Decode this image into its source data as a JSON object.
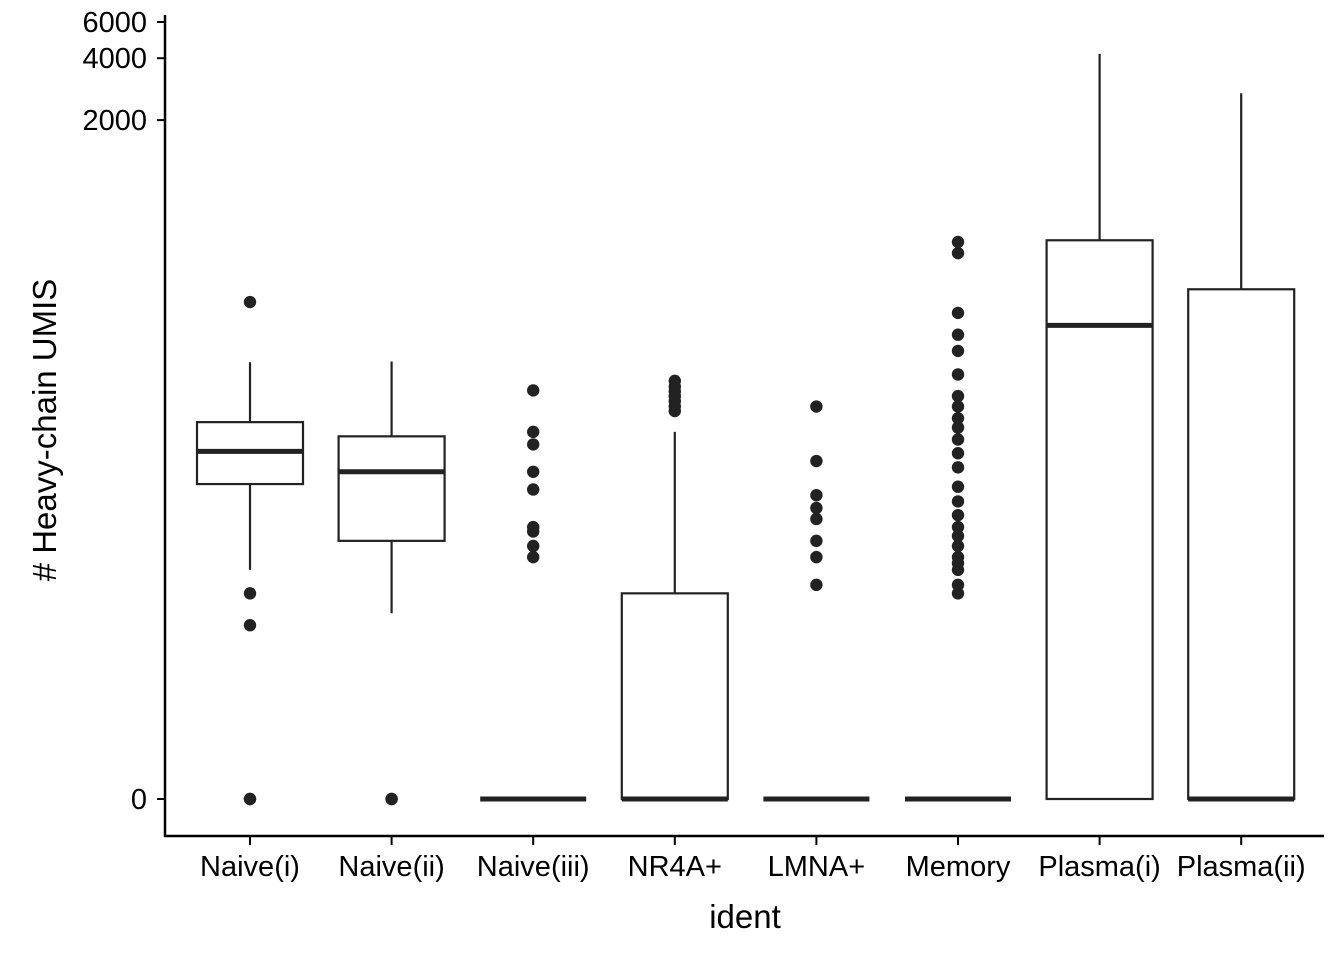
{
  "chart_data": {
    "type": "box",
    "xlabel": "ident",
    "ylabel": "# Heavy-chain UMIS",
    "y_scale": "log1p",
    "ylim": [
      0,
      6000
    ],
    "yticks": [
      {
        "value": 0,
        "label": "0"
      },
      {
        "value": 2000,
        "label": "2000"
      },
      {
        "value": 4000,
        "label": "4000"
      },
      {
        "value": 6000,
        "label": "6000"
      }
    ],
    "grid": false,
    "legend": "none",
    "colors": {
      "box_fill": "#ffffff",
      "box_stroke": "#222222",
      "point": "#222222",
      "axis": "#000000"
    },
    "categories": [
      "Naive(i)",
      "Naive(ii)",
      "Naive(iii)",
      "NR4A+",
      "LMNA+",
      "Memory",
      "Plasma(i)",
      "Plasma(ii)"
    ],
    "boxes": [
      {
        "category": "Naive(i)",
        "min": 12,
        "q1": 33,
        "median": 48,
        "q3": 67,
        "max": 132,
        "outliers": [
          0,
          0,
          6,
          9,
          260
        ]
      },
      {
        "category": "Naive(ii)",
        "min": 7,
        "q1": 17,
        "median": 38,
        "q3": 57,
        "max": 133,
        "outliers": [
          0,
          0
        ]
      },
      {
        "category": "Naive(iii)",
        "min": 0,
        "q1": 0,
        "median": 0,
        "q3": 0,
        "max": 0,
        "outliers": [
          14,
          16,
          19,
          20,
          31,
          38,
          52,
          60,
          96
        ]
      },
      {
        "category": "NR4A+",
        "min": 0,
        "q1": 0,
        "median": 0,
        "q3": 9,
        "max": 60,
        "outliers": [
          76,
          80,
          85,
          90,
          95,
          100,
          107
        ]
      },
      {
        "category": "LMNA+",
        "min": 0,
        "q1": 0,
        "median": 0,
        "q3": 0,
        "max": 0,
        "outliers": [
          10,
          14,
          17,
          22,
          25,
          29,
          43,
          80
        ]
      },
      {
        "category": "Memory",
        "min": 0,
        "q1": 0,
        "median": 0,
        "q3": 0,
        "max": 0,
        "outliers": [
          9,
          10,
          12,
          13,
          14,
          16,
          18,
          20,
          23,
          27,
          32,
          40,
          47,
          55,
          63,
          70,
          80,
          90,
          115,
          150,
          180,
          230,
          450,
          510
        ]
      },
      {
        "category": "Plasma(i)",
        "min": 0,
        "q1": 0,
        "median": 200,
        "q3": 520,
        "max": 4200,
        "outliers": []
      },
      {
        "category": "Plasma(ii)",
        "min": 0,
        "q1": 0,
        "median": 0,
        "q3": 300,
        "max": 2700,
        "outliers": []
      }
    ]
  }
}
